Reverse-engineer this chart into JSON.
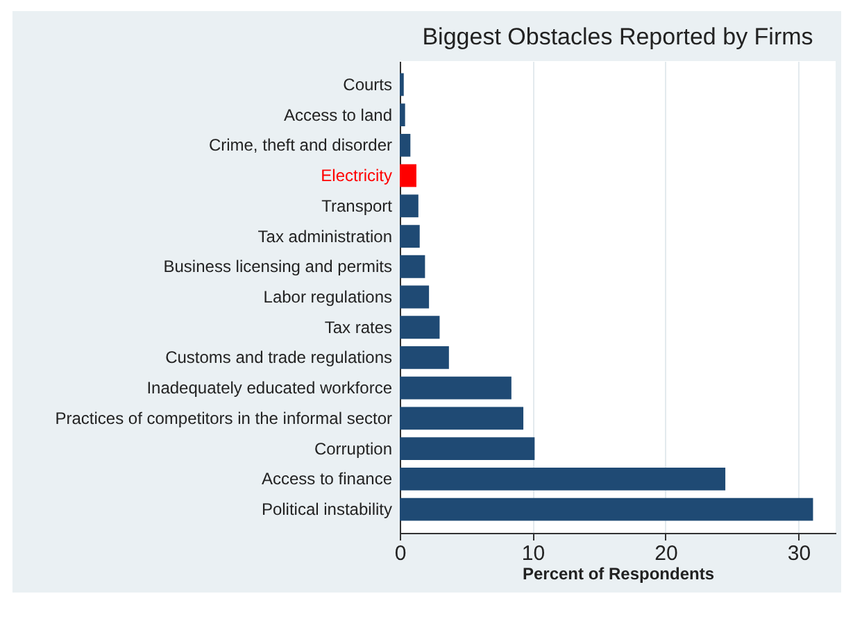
{
  "chart_data": {
    "type": "bar",
    "orientation": "horizontal",
    "title": "Biggest Obstacles Reported by Firms",
    "xlabel": "Percent of Respondents",
    "categories": [
      "Courts",
      "Access to land",
      "Crime, theft and disorder",
      "Electricity",
      "Transport",
      "Tax administration",
      "Business licensing and permits",
      "Labor regulations",
      "Tax rates",
      "Customs and trade regulations",
      "Inadequately educated workforce",
      "Practices of competitors in the informal sector",
      "Corruption",
      "Access to finance",
      "Political instability"
    ],
    "values": [
      0.3,
      0.4,
      0.8,
      1.25,
      1.4,
      1.5,
      1.9,
      2.2,
      3.0,
      3.7,
      8.4,
      9.3,
      10.15,
      24.5,
      31.1
    ],
    "colors": [
      "#1f4a74",
      "#1f4a74",
      "#1f4a74",
      "#ff0000",
      "#1f4a74",
      "#1f4a74",
      "#1f4a74",
      "#1f4a74",
      "#1f4a74",
      "#1f4a74",
      "#1f4a74",
      "#1f4a74",
      "#1f4a74",
      "#1f4a74",
      "#1f4a74"
    ],
    "xlim": [
      0,
      32.8
    ],
    "xticks": [
      0,
      10,
      20,
      30
    ],
    "grid": "x"
  }
}
